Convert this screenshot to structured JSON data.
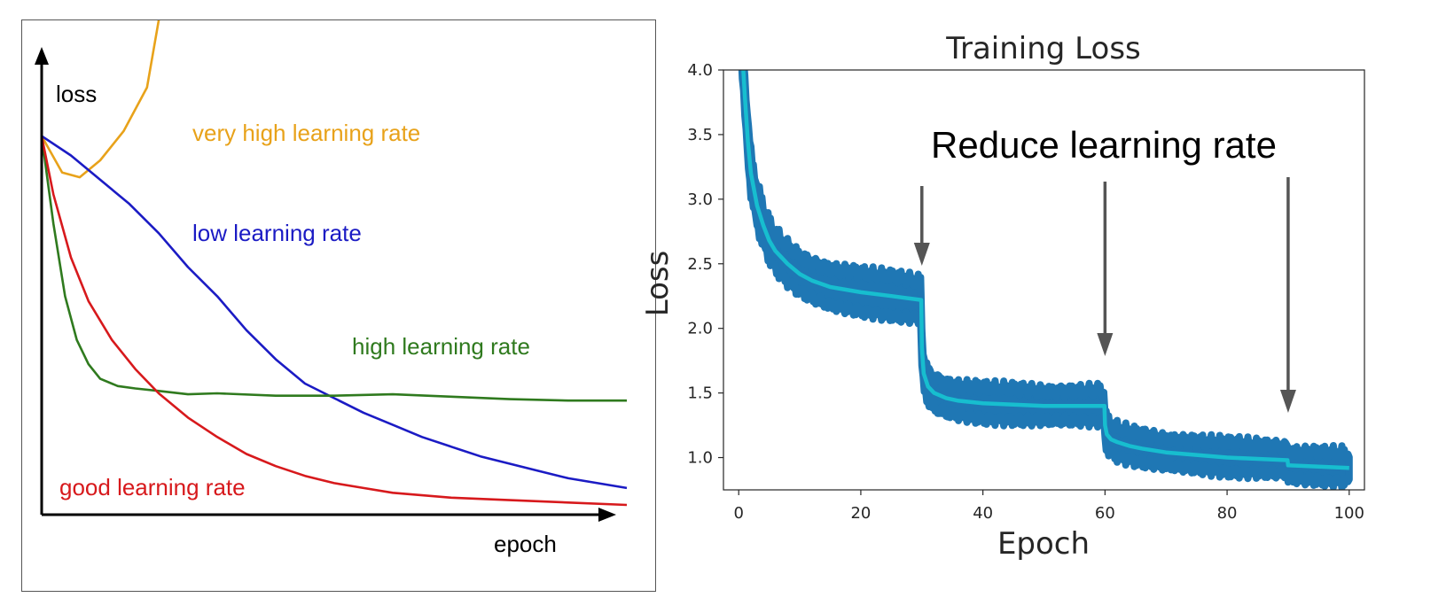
{
  "chart_data": [
    {
      "type": "line",
      "title": "",
      "xlabel": "epoch",
      "ylabel": "loss",
      "axis_ticks": false,
      "grid": false,
      "series": [
        {
          "name": "very high learning rate",
          "color": "#e8a21a",
          "x": [
            0,
            0.035,
            0.065,
            0.1,
            0.14,
            0.18,
            0.206
          ],
          "y": [
            0.78,
            0.705,
            0.695,
            0.73,
            0.79,
            0.88,
            1.06
          ]
        },
        {
          "name": "low learning rate",
          "color": "#1b1bc4",
          "x": [
            0,
            0.05,
            0.1,
            0.15,
            0.2,
            0.25,
            0.3,
            0.35,
            0.4,
            0.45,
            0.5,
            0.55,
            0.6,
            0.65,
            0.7,
            0.75,
            0.8,
            0.85,
            0.9,
            0.95,
            1.0
          ],
          "y": [
            0.78,
            0.74,
            0.69,
            0.64,
            0.58,
            0.51,
            0.45,
            0.38,
            0.32,
            0.27,
            0.24,
            0.21,
            0.185,
            0.16,
            0.14,
            0.12,
            0.105,
            0.09,
            0.075,
            0.065,
            0.055
          ]
        },
        {
          "name": "high learning rate",
          "color": "#2f7a1e",
          "x": [
            0,
            0.02,
            0.04,
            0.06,
            0.08,
            0.1,
            0.13,
            0.16,
            0.2,
            0.25,
            0.3,
            0.4,
            0.5,
            0.6,
            0.7,
            0.8,
            0.9,
            1.0
          ],
          "y": [
            0.78,
            0.6,
            0.45,
            0.36,
            0.31,
            0.28,
            0.265,
            0.26,
            0.255,
            0.248,
            0.25,
            0.245,
            0.245,
            0.248,
            0.243,
            0.238,
            0.235,
            0.235
          ]
        },
        {
          "name": "good learning rate",
          "color": "#d7191c",
          "x": [
            0,
            0.02,
            0.05,
            0.08,
            0.12,
            0.16,
            0.2,
            0.25,
            0.3,
            0.35,
            0.4,
            0.45,
            0.5,
            0.55,
            0.6,
            0.7,
            0.8,
            0.9,
            1.0
          ],
          "y": [
            0.78,
            0.66,
            0.53,
            0.44,
            0.36,
            0.3,
            0.25,
            0.2,
            0.16,
            0.125,
            0.1,
            0.08,
            0.065,
            0.055,
            0.045,
            0.035,
            0.03,
            0.025,
            0.02
          ]
        }
      ]
    },
    {
      "type": "line",
      "title": "Training Loss",
      "xlabel": "Epoch",
      "ylabel": "Loss",
      "xlim": [
        -2.5,
        102.5
      ],
      "ylim": [
        0.75,
        4.0
      ],
      "xticks": [
        0,
        20,
        40,
        60,
        80,
        100
      ],
      "xtick_labels": [
        "0",
        "20",
        "40",
        "60",
        "80",
        "100"
      ],
      "yticks": [
        1.0,
        1.5,
        2.0,
        2.5,
        3.0,
        3.5,
        4.0
      ],
      "ytick_labels": [
        "1.0",
        "1.5",
        "2.0",
        "2.5",
        "3.0",
        "3.5",
        "4.0"
      ],
      "grid": false,
      "band_color": "#1f77b4",
      "line_color": "#17becf",
      "series": [
        {
          "name": "",
          "x": [
            0,
            0.5,
            1,
            1.5,
            2,
            3,
            4,
            5,
            6,
            8,
            10,
            12,
            15,
            20,
            25,
            29.9,
            30,
            30.3,
            31,
            32,
            34,
            36,
            40,
            45,
            50,
            55,
            59.9,
            60,
            60.3,
            61,
            62,
            64,
            66,
            70,
            75,
            80,
            85,
            89.9,
            90,
            95,
            100
          ],
          "y": [
            4.6,
            4.2,
            3.8,
            3.45,
            3.2,
            2.95,
            2.8,
            2.68,
            2.6,
            2.5,
            2.42,
            2.37,
            2.32,
            2.28,
            2.25,
            2.22,
            1.85,
            1.65,
            1.55,
            1.5,
            1.46,
            1.44,
            1.42,
            1.41,
            1.4,
            1.4,
            1.4,
            1.25,
            1.18,
            1.14,
            1.12,
            1.09,
            1.07,
            1.04,
            1.02,
            1.0,
            0.99,
            0.98,
            0.94,
            0.93,
            0.92
          ],
          "band": [
            0.15,
            0.15,
            0.15,
            0.15,
            0.15,
            0.15,
            0.15,
            0.14,
            0.14,
            0.14,
            0.14,
            0.14,
            0.15,
            0.15,
            0.15,
            0.15,
            0.13,
            0.12,
            0.12,
            0.12,
            0.12,
            0.12,
            0.12,
            0.12,
            0.12,
            0.12,
            0.12,
            0.11,
            0.11,
            0.11,
            0.11,
            0.11,
            0.11,
            0.11,
            0.11,
            0.11,
            0.11,
            0.11,
            0.11,
            0.11,
            0.11
          ]
        }
      ],
      "annotations": [
        {
          "text": "Reduce learning rate",
          "arrow_x": [
            30,
            60,
            90
          ]
        }
      ]
    }
  ]
}
